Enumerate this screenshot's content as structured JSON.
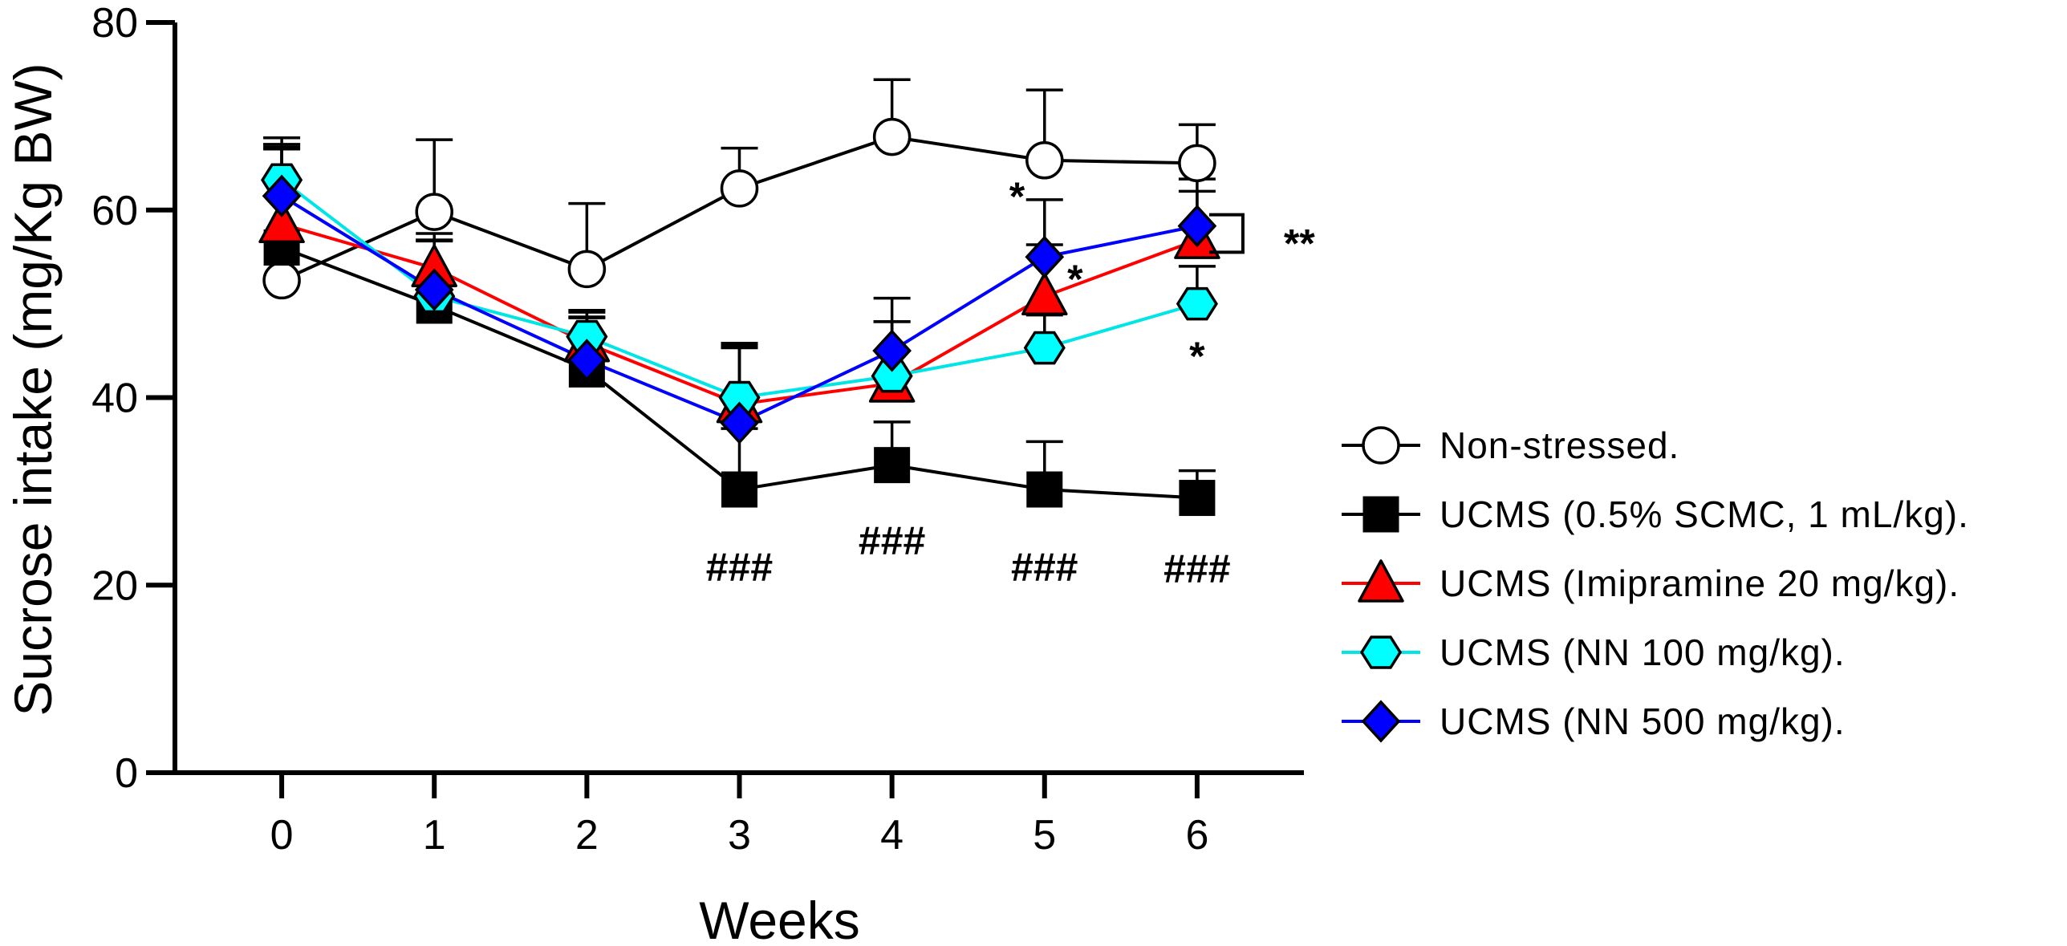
{
  "chart_data": {
    "type": "line",
    "title": "",
    "xlabel": "Weeks",
    "ylabel": "Sucrose intake (mg/Kg BW)",
    "x": [
      0,
      1,
      2,
      3,
      4,
      5,
      6
    ],
    "x_tick_labels": [
      "0",
      "1",
      "2",
      "3",
      "4",
      "5",
      "6"
    ],
    "xlim": [
      -0.7,
      6.7
    ],
    "ylim": [
      0,
      80
    ],
    "y_ticks": [
      0,
      20,
      40,
      60,
      80
    ],
    "y_tick_labels": [
      "0",
      "20",
      "40",
      "60",
      "80"
    ],
    "grid": false,
    "legend_position": "right",
    "series": [
      {
        "name": "Non-stressed.",
        "color": "#000000",
        "marker": "circle",
        "marker_fill": "#ffffff",
        "values": [
          52.5,
          59.8,
          53.7,
          62.3,
          67.8,
          65.3,
          65.0
        ],
        "error": [
          14.2,
          7.7,
          7.0,
          4.3,
          6.1,
          7.5,
          4.1
        ]
      },
      {
        "name": "UCMS (0.5% SCMC, 1 mL/kg).",
        "color": "#000000",
        "marker": "square",
        "marker_fill": "#000000",
        "values": [
          56.0,
          49.8,
          43.0,
          30.2,
          32.8,
          30.2,
          29.3
        ],
        "error": [
          10.5,
          7.0,
          5.6,
          6.5,
          4.6,
          5.1,
          2.9
        ]
      },
      {
        "name": "UCMS (Imipramine 20 mg/kg).",
        "color": "#ff0000",
        "marker": "triangle",
        "marker_fill": "#ff0000",
        "values": [
          58.5,
          53.8,
          45.8,
          39.3,
          41.5,
          50.8,
          56.8
        ],
        "error": [
          8.5,
          3.7,
          3.3,
          6.5,
          6.6,
          5.5,
          5.2
        ]
      },
      {
        "name": "UCMS (NN 100 mg/kg).",
        "color": "#00e5e5",
        "marker": "hexagon",
        "marker_fill": "#00ffff",
        "values": [
          63.2,
          50.8,
          46.5,
          40.0,
          42.3,
          45.3,
          50.0
        ],
        "error": [
          4.5,
          6.0,
          2.8,
          5.5,
          5.8,
          3.5,
          4.0
        ]
      },
      {
        "name": "UCMS (NN 500 mg/kg).",
        "color": "#0000ff",
        "marker": "diamond",
        "marker_fill": "#0000ff",
        "values": [
          61.5,
          51.5,
          44.0,
          37.3,
          45.0,
          55.0,
          58.3
        ],
        "error": [
          5.5,
          5.2,
          4.5,
          8.0,
          5.6,
          6.1,
          5.0
        ]
      }
    ],
    "annotations": [
      {
        "text": "###",
        "x": 3,
        "y": 22.0
      },
      {
        "text": "###",
        "x": 4,
        "y": 24.8
      },
      {
        "text": "###",
        "x": 5,
        "y": 22.0
      },
      {
        "text": "###",
        "x": 6,
        "y": 21.8
      },
      {
        "text": "*",
        "x": 4.82,
        "y": 61.5
      },
      {
        "text": "*",
        "x": 5.2,
        "y": 52.7
      },
      {
        "text": "*",
        "x": 6.0,
        "y": 44.5
      },
      {
        "text": "**",
        "x": 6.67,
        "y": 56.5
      }
    ],
    "bracket": {
      "x": 6.3,
      "y_top": 59.5,
      "y_bottom": 55.5
    }
  }
}
